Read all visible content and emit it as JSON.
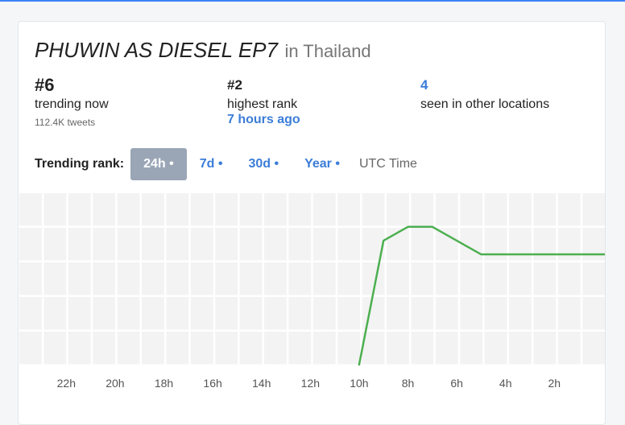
{
  "header": {
    "title": "PHUWIN AS DIESEL EP7",
    "location": "in Thailand"
  },
  "stats": {
    "current": {
      "value": "#6",
      "label": "trending now",
      "sub": "112.4K tweets"
    },
    "highest": {
      "value": "#2",
      "label": "highest rank",
      "when": "7 hours ago"
    },
    "other": {
      "value": "4",
      "label": "seen in other locations"
    }
  },
  "ranges": {
    "label": "Trending rank:",
    "items": [
      "24h •",
      "7d •",
      "30d •",
      "Year •"
    ],
    "active": 0,
    "timezone": "UTC Time"
  },
  "colors": {
    "accent": "#3b7dd8",
    "line": "#4caf50",
    "grid": "#f3f3f3"
  },
  "chart_data": {
    "type": "line",
    "x_tick_labels": [
      "22h",
      "20h",
      "18h",
      "16h",
      "14h",
      "12h",
      "10h",
      "8h",
      "6h",
      "4h",
      "2h"
    ],
    "x": [
      10,
      9,
      8,
      7,
      6,
      5,
      4,
      3,
      2,
      1,
      0
    ],
    "y": [
      null,
      2.4,
      2,
      2,
      2.4,
      2.8,
      2.8,
      2.8,
      2.8,
      2.8,
      2.8
    ],
    "y_min_visible": 1,
    "y_max_visible": 6,
    "note": "line rises from below chart at ~10h to rank ~2 around 8h-7h then settles"
  }
}
